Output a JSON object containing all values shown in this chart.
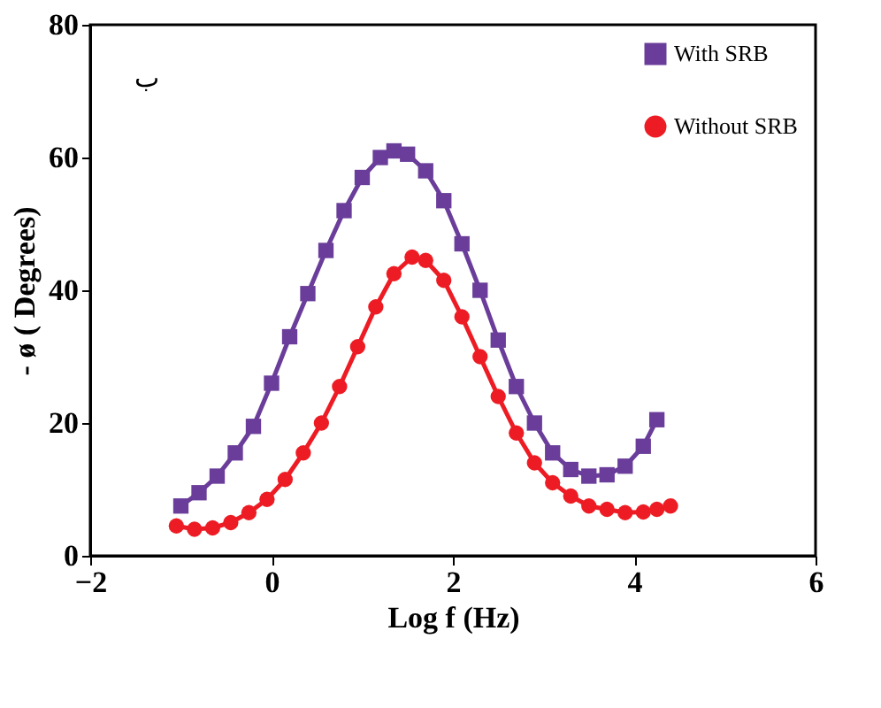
{
  "chart_data": {
    "type": "line",
    "xlabel": "Log f (Hz)",
    "ylabel": "- ø ( Degrees)",
    "xlim": [
      -2,
      6
    ],
    "xticks": [
      -2,
      0,
      2,
      4,
      6
    ],
    "ylim": [
      0,
      80
    ],
    "yticks": [
      0,
      20,
      40,
      60,
      80
    ],
    "grid": false,
    "legend": "top right",
    "annotations": [
      "ب"
    ],
    "series": [
      {
        "name": "With SRB",
        "color": "#6a3d9a",
        "marker": "square",
        "x": [
          -1.0,
          -0.8,
          -0.6,
          -0.4,
          -0.2,
          0.0,
          0.2,
          0.4,
          0.6,
          0.8,
          1.0,
          1.2,
          1.35,
          1.5,
          1.7,
          1.9,
          2.1,
          2.3,
          2.5,
          2.7,
          2.9,
          3.1,
          3.3,
          3.5,
          3.7,
          3.9,
          4.1,
          4.25
        ],
        "values": [
          7.5,
          9.5,
          12,
          15.5,
          19.5,
          26,
          33,
          39.5,
          46,
          52,
          57,
          60,
          61,
          60.5,
          58,
          53.5,
          47,
          40,
          32.5,
          25.5,
          20,
          15.5,
          13,
          12,
          12.2,
          13.5,
          16.5,
          20.5
        ]
      },
      {
        "name": "Without SRB",
        "color": "#ed1c24",
        "marker": "circle",
        "x": [
          -1.05,
          -0.85,
          -0.65,
          -0.45,
          -0.25,
          -0.05,
          0.15,
          0.35,
          0.55,
          0.75,
          0.95,
          1.15,
          1.35,
          1.55,
          1.7,
          1.9,
          2.1,
          2.3,
          2.5,
          2.7,
          2.9,
          3.1,
          3.3,
          3.5,
          3.7,
          3.9,
          4.1,
          4.25,
          4.4
        ],
        "values": [
          4.5,
          4,
          4.2,
          5,
          6.5,
          8.5,
          11.5,
          15.5,
          20,
          25.5,
          31.5,
          37.5,
          42.5,
          45,
          44.5,
          41.5,
          36,
          30,
          24,
          18.5,
          14,
          11,
          9,
          7.5,
          7,
          6.5,
          6.6,
          7,
          7.5
        ]
      }
    ]
  }
}
